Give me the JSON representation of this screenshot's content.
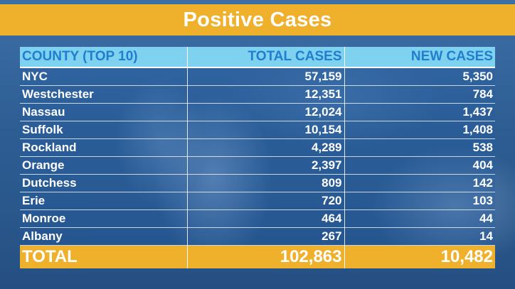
{
  "title": "Positive Cases",
  "table": {
    "headers": [
      "COUNTY (TOP 10)",
      "TOTAL CASES",
      "NEW CASES"
    ],
    "rows": [
      [
        "NYC",
        "57,159",
        "5,350"
      ],
      [
        "Westchester",
        "12,351",
        "784"
      ],
      [
        "Nassau",
        "12,024",
        "1,437"
      ],
      [
        "Suffolk",
        "10,154",
        "1,408"
      ],
      [
        "Rockland",
        "4,289",
        "538"
      ],
      [
        "Orange",
        "2,397",
        "404"
      ],
      [
        "Dutchess",
        "809",
        "142"
      ],
      [
        "Erie",
        "720",
        "103"
      ],
      [
        "Monroe",
        "464",
        "44"
      ],
      [
        "Albany",
        "267",
        "14"
      ]
    ],
    "total": [
      "TOTAL",
      "102,863",
      "10,482"
    ]
  },
  "colors": {
    "title_bar": "#efb12c",
    "header_bg": "#7fd2ef",
    "header_text": "#1f7ecf",
    "total_bar": "#efb12c"
  }
}
